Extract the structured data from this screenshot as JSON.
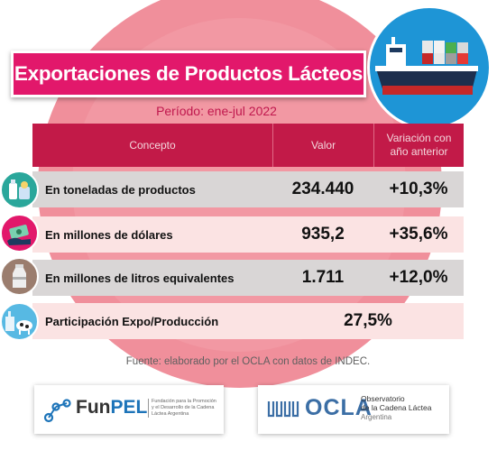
{
  "title": "Exportaciones de Productos Lácteos",
  "period": "Período: ene-jul 2022",
  "table": {
    "headers": {
      "concept": "Concepto",
      "value": "Valor",
      "variation_line1": "Variación con",
      "variation_line2": "año anterior"
    },
    "rows": [
      {
        "label": "En toneladas de productos",
        "value": "234.440",
        "variation": "+10,3%",
        "icon": "dairy-products-icon"
      },
      {
        "label": "En millones de dólares",
        "value": "935,2",
        "variation": "+35,6%",
        "icon": "money-hand-icon"
      },
      {
        "label": "En millones de litros equivalentes",
        "value": "1.711",
        "variation": "+12,0%",
        "icon": "milk-can-icon"
      },
      {
        "label": "Participación Expo/Producción",
        "value": "27,5%",
        "icon": "factory-cow-icon"
      }
    ]
  },
  "source": "Fuente: elaborado por el OCLA con datos de INDEC.",
  "logos": {
    "funpel": {
      "name_part1": "Fun",
      "name_part2": "PEL",
      "note": "Fundación para la Promoción y el Desarrollo de la Cadena Láctea Argentina"
    },
    "ocla": {
      "name": "OCLA",
      "sub1": "Observatorio",
      "sub2": "de la Cadena Láctea",
      "sub3": "Argentina"
    }
  },
  "colors": {
    "title_bg": "#e2186b",
    "header_bg": "#c21a48",
    "background_circle": "#f08f9b",
    "ship_circle": "#1e95d6"
  }
}
